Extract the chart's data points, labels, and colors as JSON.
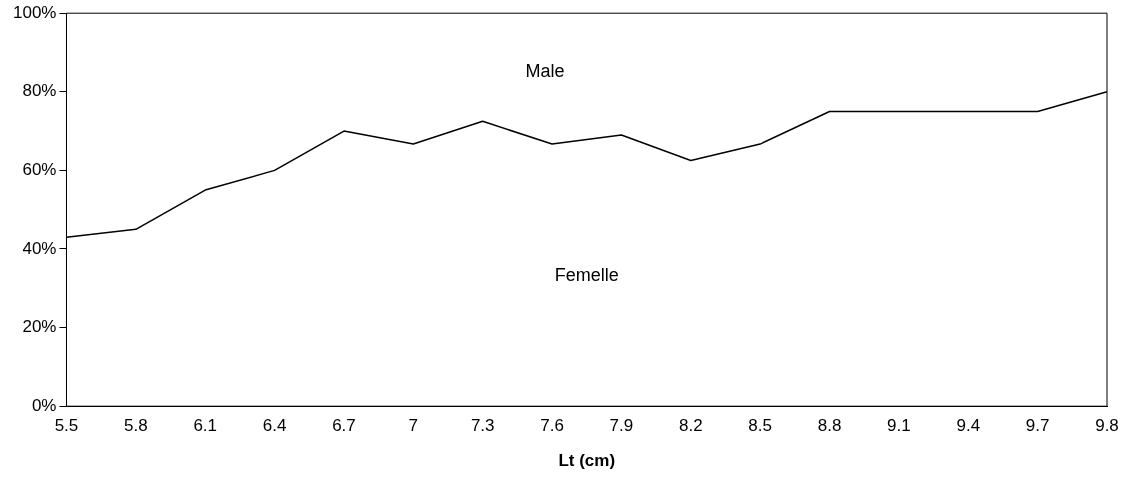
{
  "chart_data": {
    "type": "line",
    "xlabel": "Lt (cm)",
    "categories": [
      "5.5",
      "5.8",
      "6.1",
      "6.4",
      "6.7",
      "7",
      "7.3",
      "7.6",
      "7.9",
      "8.2",
      "8.5",
      "8.8",
      "9.1",
      "9.4",
      "9.7",
      "9.8"
    ],
    "series": [
      {
        "color": "#000000",
        "values": [
          43,
          45,
          55,
          60,
          70,
          66.7,
          72.5,
          66.7,
          69,
          62.5,
          66.7,
          75,
          75,
          75,
          75,
          80
        ]
      }
    ],
    "ylim": [
      0,
      100
    ],
    "yticks": [
      {
        "value": 0,
        "label": "0%"
      },
      {
        "value": 20,
        "label": "20%"
      },
      {
        "value": 40,
        "label": "40%"
      },
      {
        "value": 60,
        "label": "60%"
      },
      {
        "value": 80,
        "label": "80%"
      },
      {
        "value": 100,
        "label": "100%"
      }
    ],
    "annotations": [
      "Male",
      "Femelle"
    ],
    "grid": false,
    "legend": false,
    "marker": "none",
    "line_style": "solid"
  }
}
